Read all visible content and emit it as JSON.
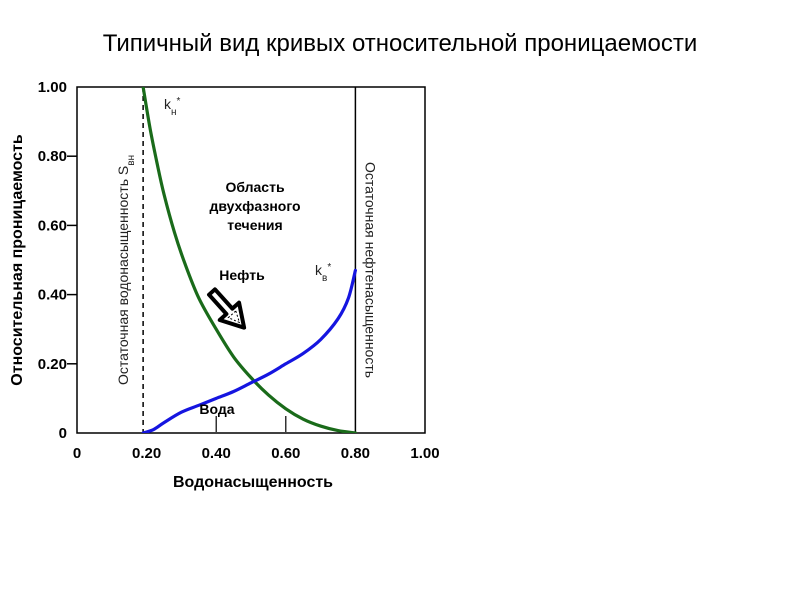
{
  "chart_data": {
    "type": "line",
    "title": "Типичный вид кривых относительной проницаемости",
    "xlabel": "Водонасыщенность",
    "ylabel": "Относительная проницаемость",
    "xlim": [
      0,
      1.0
    ],
    "ylim": [
      0,
      1.0
    ],
    "x_ticks": [
      "0",
      "0.20",
      "0.40",
      "0.60",
      "0.80",
      "1.00"
    ],
    "y_ticks": [
      "0",
      "0.20",
      "0.40",
      "0.60",
      "0.80",
      "1.00"
    ],
    "grid": false,
    "series": [
      {
        "name": "Нефть",
        "label": "kн",
        "label_sup": "*",
        "color": "#1a6b1a",
        "x": [
          0.19,
          0.21,
          0.23,
          0.25,
          0.28,
          0.31,
          0.35,
          0.4,
          0.45,
          0.5,
          0.55,
          0.6,
          0.65,
          0.7,
          0.75,
          0.8
        ],
        "y": [
          1.0,
          0.88,
          0.78,
          0.69,
          0.58,
          0.49,
          0.39,
          0.3,
          0.22,
          0.16,
          0.11,
          0.07,
          0.04,
          0.02,
          0.007,
          0.0
        ]
      },
      {
        "name": "Вода",
        "label": "kв",
        "label_sup": "*",
        "color": "#1515e0",
        "x": [
          0.19,
          0.22,
          0.25,
          0.3,
          0.35,
          0.4,
          0.45,
          0.5,
          0.55,
          0.6,
          0.65,
          0.7,
          0.75,
          0.78,
          0.8
        ],
        "y": [
          0.0,
          0.01,
          0.03,
          0.06,
          0.08,
          0.1,
          0.12,
          0.145,
          0.17,
          0.2,
          0.23,
          0.27,
          0.33,
          0.39,
          0.47
        ]
      }
    ],
    "vlines": [
      {
        "x": 0.19,
        "style": "dashed",
        "label": "Остаточная водонасыщенность S",
        "label_sub": "вн"
      },
      {
        "x": 0.8,
        "style": "solid",
        "label": "Остаточная нефтенасыщенность"
      }
    ],
    "annotations": {
      "region": [
        "Область",
        "двухфазного",
        "течения"
      ],
      "arrow_note": "Нефть",
      "water_note": "Вода"
    },
    "colors": {
      "arrow": "#000000"
    }
  }
}
